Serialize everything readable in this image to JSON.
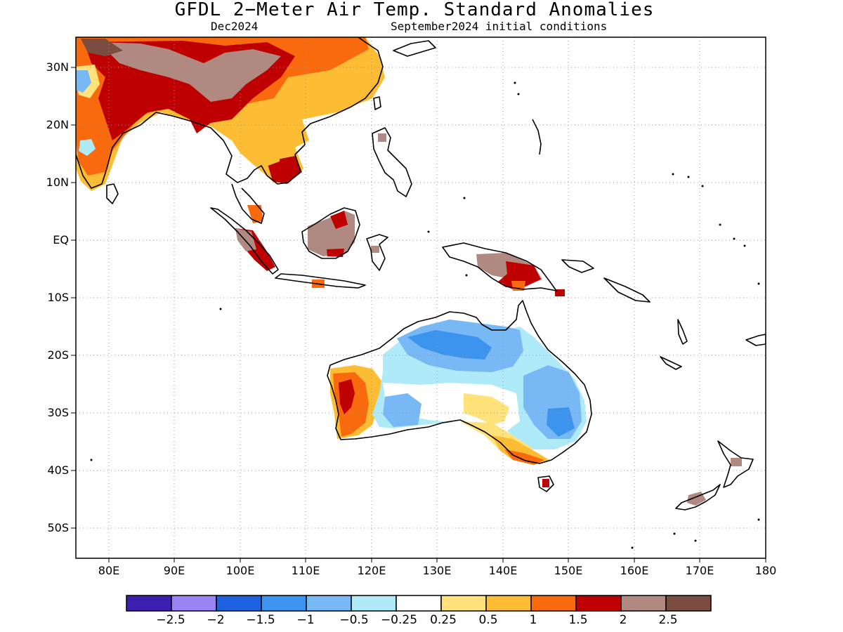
{
  "title": "GFDL 2−Meter Air Temp. Standard Anomalies",
  "valid_month": "Dec2024",
  "init_conditions": "September2024 initial conditions",
  "lat_labels": [
    "30N",
    "20N",
    "10N",
    "EQ",
    "10S",
    "20S",
    "30S",
    "40S",
    "50S"
  ],
  "lon_labels": [
    "80E",
    "90E",
    "100E",
    "110E",
    "120E",
    "130E",
    "140E",
    "150E",
    "160E",
    "170E",
    "180"
  ],
  "colorbar": {
    "colors": [
      "#3a1fb0",
      "#9a84f5",
      "#1e62e0",
      "#3c94ef",
      "#78b8f5",
      "#aeeaf7",
      "#ffffff",
      "#ffe27a",
      "#fcbd34",
      "#f96a0e",
      "#bf0000",
      "#b08a80",
      "#7a4d40"
    ],
    "tick_labels": [
      "−2.5",
      "−2",
      "−1.5",
      "−1",
      "−0.5",
      "−0.25",
      "0.25",
      "0.5",
      "1",
      "1.5",
      "2",
      "2.5"
    ]
  }
}
